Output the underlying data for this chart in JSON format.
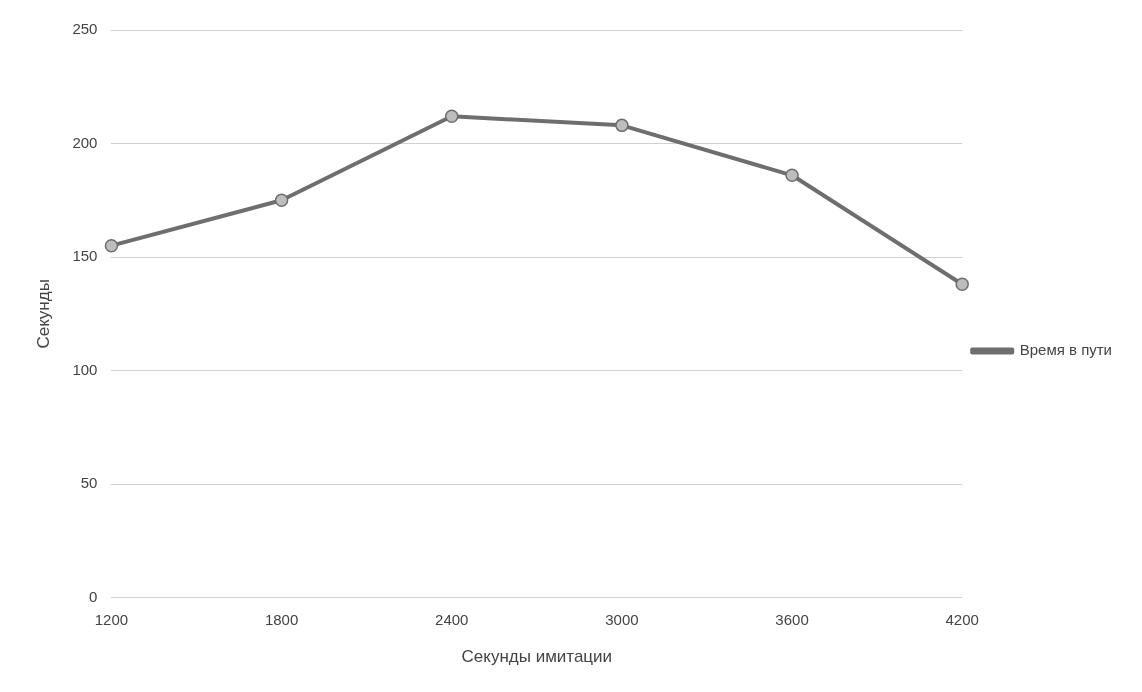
{
  "chart_data": {
    "type": "line",
    "xlabel": "Секунды имитации",
    "ylabel": "Секунды",
    "categories": [
      "1200",
      "1800",
      "2400",
      "3000",
      "3600",
      "4200"
    ],
    "series": [
      {
        "name": "Время в пути",
        "color": "#6e6e6e",
        "values": [
          155,
          175,
          212,
          208,
          186,
          138
        ]
      }
    ],
    "ylim": [
      0,
      250
    ],
    "yticks": [
      0,
      50,
      100,
      150,
      200,
      250
    ],
    "grid": "y",
    "legend": "right",
    "marker": "circle",
    "line_style": "solid"
  }
}
